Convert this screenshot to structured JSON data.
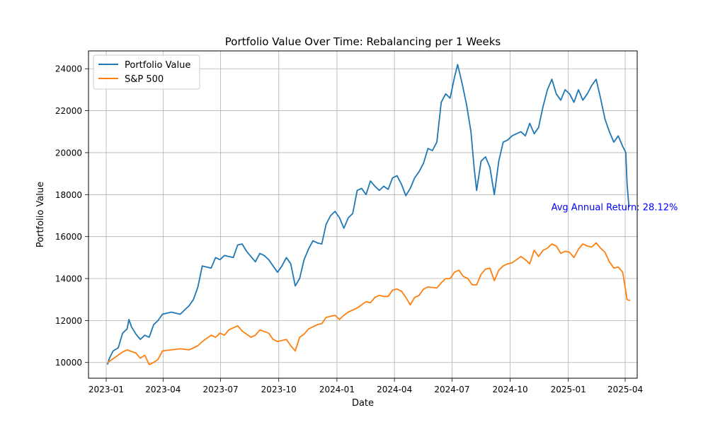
{
  "chart_data": {
    "type": "line",
    "title": "Portfolio Value Over Time: Rebalancing per 1 Weeks",
    "xlabel": "Date",
    "ylabel": "Portfolio Value",
    "x_ticks": [
      "2023-01",
      "2023-04",
      "2023-07",
      "2023-10",
      "2024-01",
      "2024-04",
      "2024-07",
      "2024-10",
      "2025-01",
      "2025-04"
    ],
    "y_ticks": [
      10000,
      12000,
      14000,
      16000,
      18000,
      20000,
      22000,
      24000
    ],
    "xlim": [
      "2022-12-04",
      "2025-04-20"
    ],
    "ylim": [
      9250,
      24850
    ],
    "grid": true,
    "legend_position": "top-left",
    "annotation": {
      "text": "Avg Annual Return: 28.12%",
      "x": "2024-12-05",
      "y": 17400,
      "color": "#0000ff"
    },
    "series": [
      {
        "name": "Portfolio Value",
        "color": "#1f77b4",
        "points": [
          [
            "2023-01-03",
            9900
          ],
          [
            "2023-01-06",
            10200
          ],
          [
            "2023-01-12",
            10550
          ],
          [
            "2023-01-20",
            10700
          ],
          [
            "2023-01-27",
            11400
          ],
          [
            "2023-02-03",
            11600
          ],
          [
            "2023-02-06",
            12050
          ],
          [
            "2023-02-10",
            11700
          ],
          [
            "2023-02-17",
            11350
          ],
          [
            "2023-02-24",
            11100
          ],
          [
            "2023-03-03",
            11300
          ],
          [
            "2023-03-10",
            11200
          ],
          [
            "2023-03-17",
            11800
          ],
          [
            "2023-03-24",
            12000
          ],
          [
            "2023-03-31",
            12300
          ],
          [
            "2023-04-07",
            12350
          ],
          [
            "2023-04-14",
            12400
          ],
          [
            "2023-04-21",
            12350
          ],
          [
            "2023-04-28",
            12300
          ],
          [
            "2023-05-05",
            12500
          ],
          [
            "2023-05-12",
            12700
          ],
          [
            "2023-05-19",
            13000
          ],
          [
            "2023-05-26",
            13600
          ],
          [
            "2023-06-02",
            14600
          ],
          [
            "2023-06-09",
            14550
          ],
          [
            "2023-06-16",
            14500
          ],
          [
            "2023-06-23",
            15000
          ],
          [
            "2023-06-30",
            14900
          ],
          [
            "2023-07-07",
            15100
          ],
          [
            "2023-07-14",
            15050
          ],
          [
            "2023-07-21",
            15000
          ],
          [
            "2023-07-28",
            15600
          ],
          [
            "2023-08-04",
            15650
          ],
          [
            "2023-08-11",
            15300
          ],
          [
            "2023-08-18",
            15050
          ],
          [
            "2023-08-25",
            14800
          ],
          [
            "2023-09-01",
            15200
          ],
          [
            "2023-09-08",
            15100
          ],
          [
            "2023-09-15",
            14900
          ],
          [
            "2023-09-22",
            14600
          ],
          [
            "2023-09-29",
            14300
          ],
          [
            "2023-10-06",
            14600
          ],
          [
            "2023-10-13",
            15000
          ],
          [
            "2023-10-20",
            14700
          ],
          [
            "2023-10-27",
            13650
          ],
          [
            "2023-11-03",
            14000
          ],
          [
            "2023-11-10",
            14900
          ],
          [
            "2023-11-17",
            15400
          ],
          [
            "2023-11-24",
            15800
          ],
          [
            "2023-12-01",
            15700
          ],
          [
            "2023-12-08",
            15650
          ],
          [
            "2023-12-15",
            16600
          ],
          [
            "2023-12-22",
            17000
          ],
          [
            "2023-12-29",
            17200
          ],
          [
            "2024-01-05",
            16900
          ],
          [
            "2024-01-12",
            16400
          ],
          [
            "2024-01-19",
            16900
          ],
          [
            "2024-01-26",
            17100
          ],
          [
            "2024-02-02",
            18200
          ],
          [
            "2024-02-09",
            18300
          ],
          [
            "2024-02-16",
            18000
          ],
          [
            "2024-02-23",
            18650
          ],
          [
            "2024-03-01",
            18400
          ],
          [
            "2024-03-08",
            18200
          ],
          [
            "2024-03-15",
            18400
          ],
          [
            "2024-03-22",
            18250
          ],
          [
            "2024-03-29",
            18800
          ],
          [
            "2024-04-05",
            18900
          ],
          [
            "2024-04-12",
            18500
          ],
          [
            "2024-04-19",
            17950
          ],
          [
            "2024-04-26",
            18300
          ],
          [
            "2024-05-03",
            18800
          ],
          [
            "2024-05-10",
            19100
          ],
          [
            "2024-05-17",
            19500
          ],
          [
            "2024-05-24",
            20200
          ],
          [
            "2024-05-31",
            20100
          ],
          [
            "2024-06-07",
            20500
          ],
          [
            "2024-06-14",
            22400
          ],
          [
            "2024-06-21",
            22800
          ],
          [
            "2024-06-28",
            22600
          ],
          [
            "2024-07-05",
            23600
          ],
          [
            "2024-07-10",
            24200
          ],
          [
            "2024-07-17",
            23300
          ],
          [
            "2024-07-24",
            22300
          ],
          [
            "2024-07-31",
            21000
          ],
          [
            "2024-08-05",
            19300
          ],
          [
            "2024-08-09",
            18200
          ],
          [
            "2024-08-16",
            19600
          ],
          [
            "2024-08-23",
            19800
          ],
          [
            "2024-08-30",
            19300
          ],
          [
            "2024-09-06",
            18000
          ],
          [
            "2024-09-13",
            19600
          ],
          [
            "2024-09-20",
            20500
          ],
          [
            "2024-09-27",
            20600
          ],
          [
            "2024-10-04",
            20800
          ],
          [
            "2024-10-11",
            20900
          ],
          [
            "2024-10-18",
            21000
          ],
          [
            "2024-10-25",
            20800
          ],
          [
            "2024-11-01",
            21400
          ],
          [
            "2024-11-08",
            20900
          ],
          [
            "2024-11-15",
            21200
          ],
          [
            "2024-11-22",
            22200
          ],
          [
            "2024-11-29",
            23000
          ],
          [
            "2024-12-06",
            23500
          ],
          [
            "2024-12-13",
            22800
          ],
          [
            "2024-12-20",
            22500
          ],
          [
            "2024-12-27",
            23000
          ],
          [
            "2025-01-03",
            22800
          ],
          [
            "2025-01-10",
            22400
          ],
          [
            "2025-01-17",
            23000
          ],
          [
            "2025-01-24",
            22500
          ],
          [
            "2025-01-31",
            22800
          ],
          [
            "2025-02-07",
            23200
          ],
          [
            "2025-02-14",
            23500
          ],
          [
            "2025-02-21",
            22600
          ],
          [
            "2025-02-28",
            21600
          ],
          [
            "2025-03-07",
            21000
          ],
          [
            "2025-03-14",
            20500
          ],
          [
            "2025-03-21",
            20800
          ],
          [
            "2025-03-28",
            20300
          ],
          [
            "2025-04-02",
            20000
          ],
          [
            "2025-04-04",
            18500
          ],
          [
            "2025-04-07",
            17400
          ]
        ]
      },
      {
        "name": "S&P 500",
        "color": "#ff7f0e",
        "points": [
          [
            "2023-01-03",
            10000
          ],
          [
            "2023-01-13",
            10200
          ],
          [
            "2023-01-27",
            10500
          ],
          [
            "2023-02-03",
            10600
          ],
          [
            "2023-02-17",
            10450
          ],
          [
            "2023-02-24",
            10200
          ],
          [
            "2023-03-03",
            10350
          ],
          [
            "2023-03-10",
            9900
          ],
          [
            "2023-03-17",
            10000
          ],
          [
            "2023-03-24",
            10150
          ],
          [
            "2023-03-31",
            10550
          ],
          [
            "2023-04-14",
            10600
          ],
          [
            "2023-04-28",
            10650
          ],
          [
            "2023-05-12",
            10600
          ],
          [
            "2023-05-26",
            10800
          ],
          [
            "2023-06-02",
            11000
          ],
          [
            "2023-06-16",
            11300
          ],
          [
            "2023-06-23",
            11200
          ],
          [
            "2023-06-30",
            11400
          ],
          [
            "2023-07-07",
            11300
          ],
          [
            "2023-07-14",
            11550
          ],
          [
            "2023-07-28",
            11750
          ],
          [
            "2023-08-04",
            11500
          ],
          [
            "2023-08-18",
            11200
          ],
          [
            "2023-08-25",
            11300
          ],
          [
            "2023-09-01",
            11550
          ],
          [
            "2023-09-15",
            11400
          ],
          [
            "2023-09-22",
            11100
          ],
          [
            "2023-09-29",
            11000
          ],
          [
            "2023-10-06",
            11050
          ],
          [
            "2023-10-13",
            11100
          ],
          [
            "2023-10-20",
            10800
          ],
          [
            "2023-10-27",
            10550
          ],
          [
            "2023-11-03",
            11200
          ],
          [
            "2023-11-10",
            11350
          ],
          [
            "2023-11-17",
            11600
          ],
          [
            "2023-11-24",
            11700
          ],
          [
            "2023-12-01",
            11800
          ],
          [
            "2023-12-08",
            11850
          ],
          [
            "2023-12-15",
            12150
          ],
          [
            "2023-12-22",
            12200
          ],
          [
            "2023-12-29",
            12250
          ],
          [
            "2024-01-05",
            12050
          ],
          [
            "2024-01-12",
            12250
          ],
          [
            "2024-01-19",
            12400
          ],
          [
            "2024-02-02",
            12600
          ],
          [
            "2024-02-16",
            12900
          ],
          [
            "2024-02-23",
            12850
          ],
          [
            "2024-03-01",
            13100
          ],
          [
            "2024-03-08",
            13200
          ],
          [
            "2024-03-15",
            13150
          ],
          [
            "2024-03-22",
            13150
          ],
          [
            "2024-03-29",
            13450
          ],
          [
            "2024-04-05",
            13500
          ],
          [
            "2024-04-12",
            13400
          ],
          [
            "2024-04-19",
            13100
          ],
          [
            "2024-04-26",
            12750
          ],
          [
            "2024-05-03",
            13100
          ],
          [
            "2024-05-10",
            13200
          ],
          [
            "2024-05-17",
            13500
          ],
          [
            "2024-05-24",
            13600
          ],
          [
            "2024-06-07",
            13550
          ],
          [
            "2024-06-14",
            13800
          ],
          [
            "2024-06-21",
            14000
          ],
          [
            "2024-06-28",
            14000
          ],
          [
            "2024-07-05",
            14300
          ],
          [
            "2024-07-12",
            14400
          ],
          [
            "2024-07-19",
            14100
          ],
          [
            "2024-07-26",
            14000
          ],
          [
            "2024-08-02",
            13700
          ],
          [
            "2024-08-09",
            13700
          ],
          [
            "2024-08-16",
            14200
          ],
          [
            "2024-08-23",
            14450
          ],
          [
            "2024-08-30",
            14500
          ],
          [
            "2024-09-06",
            13900
          ],
          [
            "2024-09-13",
            14400
          ],
          [
            "2024-09-20",
            14600
          ],
          [
            "2024-09-27",
            14700
          ],
          [
            "2024-10-04",
            14750
          ],
          [
            "2024-10-11",
            14900
          ],
          [
            "2024-10-18",
            15050
          ],
          [
            "2024-10-25",
            14900
          ],
          [
            "2024-11-01",
            14700
          ],
          [
            "2024-11-08",
            15350
          ],
          [
            "2024-11-15",
            15050
          ],
          [
            "2024-11-22",
            15350
          ],
          [
            "2024-11-29",
            15450
          ],
          [
            "2024-12-06",
            15650
          ],
          [
            "2024-12-13",
            15550
          ],
          [
            "2024-12-20",
            15200
          ],
          [
            "2024-12-27",
            15300
          ],
          [
            "2025-01-03",
            15250
          ],
          [
            "2025-01-10",
            15000
          ],
          [
            "2025-01-17",
            15400
          ],
          [
            "2025-01-24",
            15650
          ],
          [
            "2025-01-31",
            15550
          ],
          [
            "2025-02-07",
            15500
          ],
          [
            "2025-02-14",
            15700
          ],
          [
            "2025-02-21",
            15450
          ],
          [
            "2025-02-28",
            15250
          ],
          [
            "2025-03-07",
            14800
          ],
          [
            "2025-03-14",
            14500
          ],
          [
            "2025-03-21",
            14550
          ],
          [
            "2025-03-28",
            14300
          ],
          [
            "2025-04-04",
            13000
          ],
          [
            "2025-04-09",
            12950
          ]
        ]
      }
    ]
  }
}
